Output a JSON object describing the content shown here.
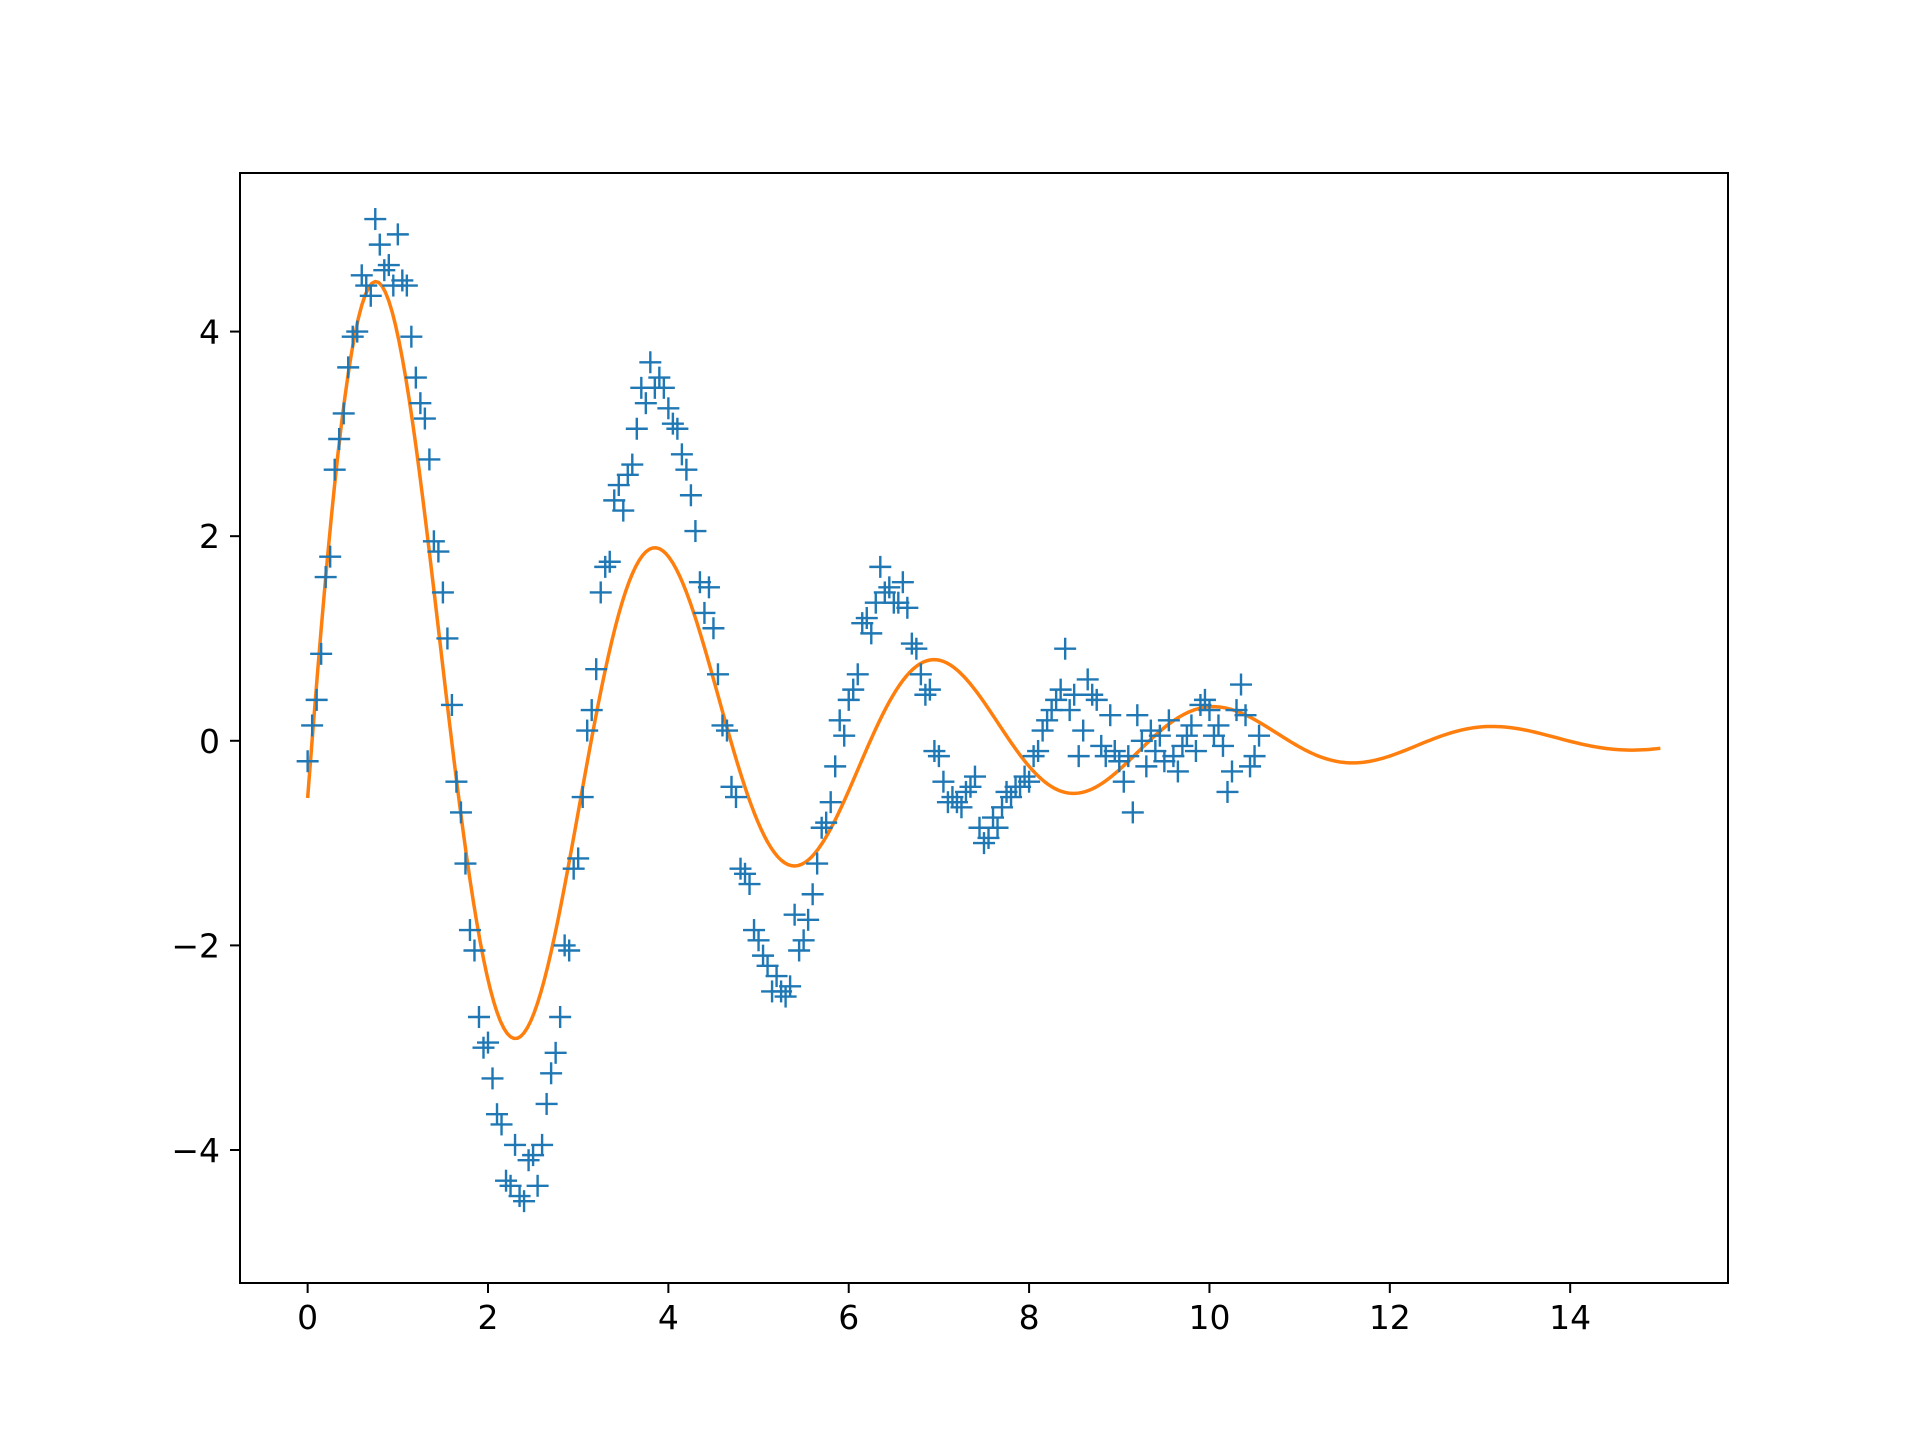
{
  "chart_data": {
    "type": "scatter",
    "title": "",
    "xlabel": "",
    "ylabel": "",
    "xlim": [
      -0.75,
      15.75
    ],
    "ylim": [
      -5.3,
      5.55
    ],
    "grid": false,
    "legend": "none",
    "x_ticks": [
      0,
      2,
      4,
      6,
      8,
      10,
      12,
      14
    ],
    "x_tick_labels": [
      "0",
      "2",
      "4",
      "6",
      "8",
      "10",
      "12",
      "14"
    ],
    "y_ticks": [
      -4,
      -2,
      0,
      2,
      4
    ],
    "y_tick_labels": [
      "−4",
      "−2",
      "0",
      "2",
      "4"
    ],
    "series": [
      {
        "kind": "scatter",
        "marker": "+",
        "color": "#1f77b4",
        "points": [
          [
            0.0,
            -0.2
          ],
          [
            0.05,
            0.15
          ],
          [
            0.1,
            0.4
          ],
          [
            0.15,
            0.85
          ],
          [
            0.2,
            1.6
          ],
          [
            0.25,
            1.8
          ],
          [
            0.3,
            2.65
          ],
          [
            0.35,
            2.95
          ],
          [
            0.4,
            3.2
          ],
          [
            0.45,
            3.65
          ],
          [
            0.5,
            3.95
          ],
          [
            0.55,
            4.0
          ],
          [
            0.6,
            4.55
          ],
          [
            0.65,
            4.45
          ],
          [
            0.7,
            4.35
          ],
          [
            0.75,
            5.1
          ],
          [
            0.8,
            4.85
          ],
          [
            0.85,
            4.6
          ],
          [
            0.9,
            4.65
          ],
          [
            0.95,
            4.45
          ],
          [
            1.0,
            4.95
          ],
          [
            1.05,
            4.5
          ],
          [
            1.1,
            4.45
          ],
          [
            1.15,
            3.95
          ],
          [
            1.2,
            3.55
          ],
          [
            1.25,
            3.3
          ],
          [
            1.3,
            3.15
          ],
          [
            1.35,
            2.75
          ],
          [
            1.4,
            1.95
          ],
          [
            1.45,
            1.85
          ],
          [
            1.5,
            1.45
          ],
          [
            1.55,
            1.0
          ],
          [
            1.6,
            0.35
          ],
          [
            1.65,
            -0.4
          ],
          [
            1.7,
            -0.7
          ],
          [
            1.75,
            -1.2
          ],
          [
            1.8,
            -1.85
          ],
          [
            1.85,
            -2.05
          ],
          [
            1.9,
            -2.7
          ],
          [
            1.95,
            -3.0
          ],
          [
            2.0,
            -2.95
          ],
          [
            2.05,
            -3.3
          ],
          [
            2.1,
            -3.65
          ],
          [
            2.15,
            -3.75
          ],
          [
            2.2,
            -4.3
          ],
          [
            2.25,
            -4.35
          ],
          [
            2.3,
            -3.95
          ],
          [
            2.35,
            -4.45
          ],
          [
            2.4,
            -4.5
          ],
          [
            2.45,
            -4.1
          ],
          [
            2.5,
            -4.05
          ],
          [
            2.55,
            -4.35
          ],
          [
            2.6,
            -3.95
          ],
          [
            2.65,
            -3.55
          ],
          [
            2.7,
            -3.25
          ],
          [
            2.75,
            -3.05
          ],
          [
            2.8,
            -2.7
          ],
          [
            2.85,
            -2.0
          ],
          [
            2.9,
            -2.05
          ],
          [
            2.95,
            -1.25
          ],
          [
            3.0,
            -1.15
          ],
          [
            3.05,
            -0.55
          ],
          [
            3.1,
            0.1
          ],
          [
            3.15,
            0.3
          ],
          [
            3.2,
            0.7
          ],
          [
            3.25,
            1.45
          ],
          [
            3.3,
            1.7
          ],
          [
            3.35,
            1.75
          ],
          [
            3.4,
            2.35
          ],
          [
            3.45,
            2.5
          ],
          [
            3.5,
            2.25
          ],
          [
            3.55,
            2.6
          ],
          [
            3.6,
            2.7
          ],
          [
            3.65,
            3.05
          ],
          [
            3.7,
            3.45
          ],
          [
            3.75,
            3.3
          ],
          [
            3.8,
            3.7
          ],
          [
            3.85,
            3.45
          ],
          [
            3.9,
            3.55
          ],
          [
            3.95,
            3.45
          ],
          [
            4.0,
            3.25
          ],
          [
            4.05,
            3.1
          ],
          [
            4.1,
            3.05
          ],
          [
            4.15,
            2.8
          ],
          [
            4.2,
            2.65
          ],
          [
            4.25,
            2.4
          ],
          [
            4.3,
            2.05
          ],
          [
            4.35,
            1.55
          ],
          [
            4.4,
            1.25
          ],
          [
            4.45,
            1.5
          ],
          [
            4.5,
            1.1
          ],
          [
            4.55,
            0.65
          ],
          [
            4.6,
            0.15
          ],
          [
            4.65,
            0.1
          ],
          [
            4.7,
            -0.45
          ],
          [
            4.75,
            -0.55
          ],
          [
            4.8,
            -1.25
          ],
          [
            4.85,
            -1.3
          ],
          [
            4.9,
            -1.4
          ],
          [
            4.95,
            -1.85
          ],
          [
            5.0,
            -1.95
          ],
          [
            5.05,
            -2.1
          ],
          [
            5.1,
            -2.2
          ],
          [
            5.15,
            -2.45
          ],
          [
            5.2,
            -2.3
          ],
          [
            5.25,
            -2.45
          ],
          [
            5.3,
            -2.5
          ],
          [
            5.35,
            -2.4
          ],
          [
            5.4,
            -1.7
          ],
          [
            5.45,
            -2.05
          ],
          [
            5.5,
            -1.95
          ],
          [
            5.55,
            -1.75
          ],
          [
            5.6,
            -1.5
          ],
          [
            5.65,
            -1.2
          ],
          [
            5.7,
            -0.85
          ],
          [
            5.75,
            -0.8
          ],
          [
            5.8,
            -0.6
          ],
          [
            5.85,
            -0.25
          ],
          [
            5.9,
            0.2
          ],
          [
            5.95,
            0.05
          ],
          [
            6.0,
            0.4
          ],
          [
            6.05,
            0.5
          ],
          [
            6.1,
            0.65
          ],
          [
            6.15,
            1.15
          ],
          [
            6.2,
            1.2
          ],
          [
            6.25,
            1.05
          ],
          [
            6.3,
            1.35
          ],
          [
            6.35,
            1.7
          ],
          [
            6.4,
            1.45
          ],
          [
            6.45,
            1.5
          ],
          [
            6.5,
            1.35
          ],
          [
            6.55,
            1.35
          ],
          [
            6.6,
            1.55
          ],
          [
            6.65,
            1.3
          ],
          [
            6.7,
            0.95
          ],
          [
            6.75,
            0.9
          ],
          [
            6.8,
            0.65
          ],
          [
            6.85,
            0.45
          ],
          [
            6.9,
            0.5
          ],
          [
            6.95,
            -0.1
          ],
          [
            7.0,
            -0.15
          ],
          [
            7.05,
            -0.4
          ],
          [
            7.1,
            -0.6
          ],
          [
            7.15,
            -0.55
          ],
          [
            7.2,
            -0.6
          ],
          [
            7.25,
            -0.65
          ],
          [
            7.3,
            -0.5
          ],
          [
            7.35,
            -0.45
          ],
          [
            7.4,
            -0.35
          ],
          [
            7.45,
            -0.85
          ],
          [
            7.5,
            -1.0
          ],
          [
            7.55,
            -0.95
          ],
          [
            7.6,
            -0.75
          ],
          [
            7.65,
            -0.85
          ],
          [
            7.7,
            -0.65
          ],
          [
            7.75,
            -0.5
          ],
          [
            7.8,
            -0.55
          ],
          [
            7.85,
            -0.45
          ],
          [
            7.9,
            -0.45
          ],
          [
            7.95,
            -0.35
          ],
          [
            8.0,
            -0.4
          ],
          [
            8.05,
            -0.15
          ],
          [
            8.1,
            -0.1
          ],
          [
            8.15,
            0.1
          ],
          [
            8.2,
            0.2
          ],
          [
            8.25,
            0.3
          ],
          [
            8.3,
            0.4
          ],
          [
            8.35,
            0.5
          ],
          [
            8.4,
            0.9
          ],
          [
            8.45,
            0.3
          ],
          [
            8.5,
            0.45
          ],
          [
            8.55,
            -0.15
          ],
          [
            8.6,
            0.1
          ],
          [
            8.65,
            0.6
          ],
          [
            8.7,
            0.45
          ],
          [
            8.75,
            0.4
          ],
          [
            8.8,
            -0.05
          ],
          [
            8.85,
            -0.15
          ],
          [
            8.9,
            0.25
          ],
          [
            8.95,
            -0.1
          ],
          [
            9.0,
            -0.2
          ],
          [
            9.05,
            -0.4
          ],
          [
            9.1,
            -0.15
          ],
          [
            9.15,
            -0.7
          ],
          [
            9.2,
            0.25
          ],
          [
            9.25,
            0.0
          ],
          [
            9.3,
            -0.25
          ],
          [
            9.35,
            0.1
          ],
          [
            9.4,
            -0.1
          ],
          [
            9.45,
            0.05
          ],
          [
            9.5,
            -0.2
          ],
          [
            9.55,
            0.2
          ],
          [
            9.6,
            -0.15
          ],
          [
            9.65,
            -0.3
          ],
          [
            9.7,
            -0.05
          ],
          [
            9.75,
            0.05
          ],
          [
            9.8,
            0.15
          ],
          [
            9.85,
            -0.1
          ],
          [
            9.9,
            0.35
          ],
          [
            9.95,
            0.4
          ],
          [
            10.0,
            0.3
          ],
          [
            10.05,
            0.05
          ],
          [
            10.1,
            0.15
          ],
          [
            10.15,
            -0.05
          ],
          [
            10.2,
            -0.5
          ],
          [
            10.25,
            -0.3
          ],
          [
            10.3,
            0.3
          ],
          [
            10.35,
            0.55
          ],
          [
            10.4,
            0.25
          ],
          [
            10.45,
            -0.25
          ],
          [
            10.5,
            -0.15
          ],
          [
            10.55,
            0.05
          ]
        ]
      },
      {
        "kind": "line",
        "color": "#ff7f0e",
        "model": "damped-sine",
        "amplitude": 5.6,
        "decay": 0.28,
        "angular_frequency": 2.03,
        "phase": -0.1,
        "x_start": 0,
        "x_end": 15
      }
    ]
  }
}
